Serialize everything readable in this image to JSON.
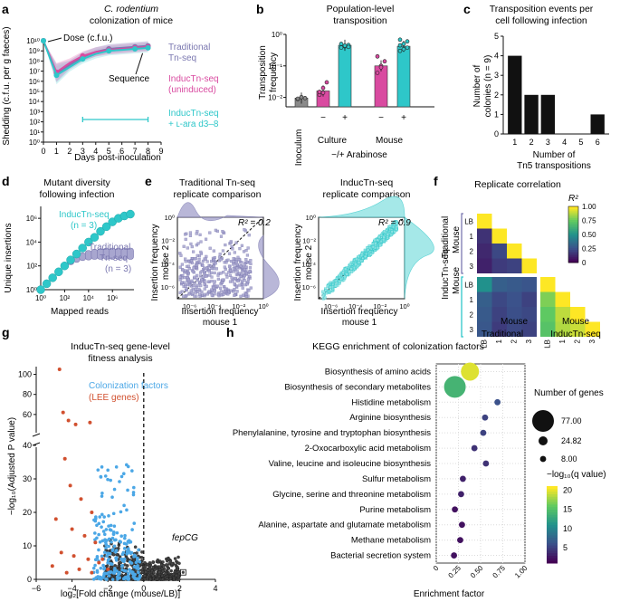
{
  "panel_letters": [
    "a",
    "b",
    "c",
    "d",
    "e",
    "f",
    "g",
    "h"
  ],
  "colors": {
    "traditional": "#7b78b0",
    "traditional_light": "#a8a6cf",
    "inductn": "#d94aa0",
    "inductn_light": "#ea9ccc",
    "cyan": "#2ec7c9",
    "lee": "#d1502f",
    "colonization": "#4ba7e6",
    "grey": "#8a8a8a",
    "black": "#111111"
  },
  "chart_data": [
    {
      "id": "a",
      "type": "line",
      "title": "C. rodentium",
      "subtitle": "colonization of mice",
      "xlabel": "Days post-inoculation",
      "ylabel": "Shedding (c.f.u. per g faeces)",
      "xlim": [
        0,
        9
      ],
      "ylim_log10": [
        0,
        10
      ],
      "xticks": [
        "0",
        "1",
        "2",
        "3",
        "4",
        "5",
        "6",
        "7",
        "8",
        "9"
      ],
      "yticks": [
        "10⁰",
        "10¹",
        "10²",
        "10³",
        "10⁴",
        "10⁵",
        "10⁶",
        "10⁷",
        "10⁸",
        "10⁹",
        "10¹⁰"
      ],
      "annotations": {
        "dose": "Dose (c.f.u.)",
        "sequence": "Sequence"
      },
      "legend": {
        "traditional": [
          "Traditional",
          "Tn-seq"
        ],
        "inductn_uninduced": [
          "InducTn-seq",
          "(uninduced)"
        ],
        "inductn_ara": [
          "InducTn-seq",
          "+ ʟ-ara d3–8"
        ]
      },
      "arabinose_window": [
        3,
        8
      ],
      "series": [
        {
          "name": "Traditional Tn-seq",
          "x": [
            0,
            1,
            2,
            3,
            4,
            5,
            6,
            7,
            8
          ],
          "log10_y": [
            10.0,
            6.8,
            7.6,
            8.4,
            8.9,
            9.2,
            9.3,
            9.4,
            9.5
          ]
        },
        {
          "name": "InducTn-seq (uninduced)",
          "x": [
            0,
            1,
            2,
            3,
            4,
            5,
            6,
            7,
            8
          ],
          "log10_y": [
            10.0,
            6.9,
            7.8,
            8.5,
            8.9,
            9.1,
            9.2,
            9.3,
            9.4
          ]
        },
        {
          "name": "InducTn-seq + L-ara d3-8",
          "x": [
            0,
            1,
            2,
            3,
            4,
            5,
            6,
            7,
            8
          ],
          "log10_y": [
            10.0,
            6.6,
            7.4,
            8.2,
            8.7,
            9.0,
            9.1,
            9.2,
            9.3
          ]
        }
      ]
    },
    {
      "id": "b",
      "type": "bar",
      "title": "Population-level",
      "subtitle": "transposition",
      "ylabel": [
        "Transposition",
        "frequency"
      ],
      "yticks": [
        "10⁻²",
        "10⁻¹",
        "10⁰"
      ],
      "categories": [
        "Inoculum",
        "Culture −",
        "Culture +",
        "Mouse −",
        "Mouse +"
      ],
      "signs": [
        "−",
        "+",
        "−",
        "+"
      ],
      "group_labels": [
        "Inoculum",
        "Culture",
        "Mouse"
      ],
      "xlabel": "−/+ Arabinose",
      "values": [
        0.0095,
        0.016,
        0.45,
        0.1,
        0.42
      ],
      "points": [
        [
          0.0088,
          0.0102,
          0.0095,
          0.0091
        ],
        [
          0.012,
          0.02,
          0.03,
          0.015,
          0.014
        ],
        [
          0.38,
          0.42,
          0.46,
          0.5,
          0.44,
          0.4
        ],
        [
          0.06,
          0.1,
          0.14,
          0.2,
          0.09
        ],
        [
          0.3,
          0.34,
          0.38,
          0.45,
          0.5,
          0.6,
          0.68
        ]
      ],
      "bar_colors": [
        "#8a8a8a",
        "#d94aa0",
        "#2ec7c9",
        "#d94aa0",
        "#2ec7c9"
      ]
    },
    {
      "id": "c",
      "type": "bar",
      "title": "Transposition events per",
      "subtitle": "cell following infection",
      "ylabel": [
        "Number of",
        "colonies (n = 9)"
      ],
      "xlabel": [
        "Number of",
        "Tn5 transpositions"
      ],
      "categories": [
        "1",
        "2",
        "3",
        "4",
        "5",
        "6"
      ],
      "values": [
        4,
        2,
        2,
        0,
        0,
        1
      ],
      "ylim": [
        0,
        5
      ],
      "yticks": [
        "0",
        "1",
        "2",
        "3",
        "4",
        "5"
      ]
    },
    {
      "id": "d",
      "type": "line",
      "title": "Mutant diversity",
      "subtitle": "following infection",
      "ylabel": "Unique insertions",
      "xlabel": "Mapped reads",
      "xticks": [
        "10⁰",
        "10²",
        "10⁴",
        "10⁶"
      ],
      "yticks": [
        "10⁰",
        "10²",
        "10⁴",
        "10⁶"
      ],
      "legend": {
        "inductn": [
          "InducTn-seq",
          "(n = 3)"
        ],
        "traditional": [
          "Traditional",
          "Tn-seq",
          "(n = 3)"
        ]
      },
      "series": [
        {
          "name": "InducTn-seq",
          "log10_x": [
            0,
            0.5,
            1,
            1.5,
            2,
            2.5,
            3,
            3.5,
            4,
            4.5,
            5,
            5.5,
            6,
            6.5,
            7,
            7.5
          ],
          "log10_y": [
            0,
            0.5,
            1,
            1.5,
            2,
            2.5,
            3,
            3.5,
            4,
            4.4,
            4.9,
            5.3,
            5.7,
            6.0,
            6.2,
            6.35
          ]
        },
        {
          "name": "Traditional Tn-seq",
          "log10_x": [
            0,
            0.5,
            1,
            1.5,
            2,
            2.5,
            3,
            3.5,
            4,
            4.5,
            5,
            5.5,
            6,
            6.5,
            7,
            7.5
          ],
          "log10_y": [
            0,
            0.5,
            1,
            1.45,
            1.9,
            2.3,
            2.6,
            2.8,
            2.9,
            2.95,
            3.0,
            3.0,
            3.0,
            3.0,
            3.0,
            3.0
          ],
          "band_low": [
            0,
            0.5,
            1,
            1.4,
            1.8,
            2.1,
            2.3,
            2.45,
            2.5,
            2.55,
            2.55,
            2.55,
            2.55,
            2.55,
            2.55,
            2.55
          ],
          "band_high": [
            0,
            0.5,
            1,
            1.5,
            2,
            2.45,
            2.85,
            3.1,
            3.3,
            3.4,
            3.45,
            3.5,
            3.5,
            3.5,
            3.5,
            3.5
          ]
        }
      ]
    },
    {
      "id": "e",
      "type": "scatter",
      "plots": [
        {
          "title": "Traditional Tn-seq",
          "subtitle": "replicate comparison",
          "r2": "R² = 0.2",
          "xlabel": "Insertion frequency",
          "xlabel2": "mouse 1",
          "ylabel": "Insertion frequency",
          "ylabel2": "mouse 2",
          "ticks": [
            "10⁻⁶",
            "10⁻⁴",
            "10⁻²",
            "10⁰"
          ]
        },
        {
          "title": "InducTn-seq",
          "subtitle": "replicate comparison",
          "r2": "R² = 0.9",
          "xlabel": "Insertion frequency",
          "xlabel2": "mouse 1",
          "ylabel": "Insertion frequency",
          "ylabel2": "mouse 2",
          "ticks": [
            "10⁻⁶",
            "10⁻⁴",
            "10⁻²",
            "10⁰"
          ]
        }
      ]
    },
    {
      "id": "f",
      "type": "heatmap",
      "title": "Replicate correlation",
      "row_labels": [
        "LB",
        "1",
        "2",
        "3",
        "LB",
        "1",
        "2",
        "3"
      ],
      "col_labels": [
        "LB",
        "1",
        "2",
        "3",
        "LB",
        "1",
        "2",
        "3"
      ],
      "left_group_labels": [
        "Traditional",
        "InducTn-seq"
      ],
      "mouse_label": "Mouse",
      "bottom_group_labels": [
        "Traditional",
        "InducTn-seq"
      ],
      "colorbar_label": "R²",
      "colorbar_ticks": [
        "0",
        "0.25",
        "0.50",
        "0.75",
        "1.00"
      ],
      "matrix": [
        [
          1.0,
          null,
          null,
          null,
          null,
          null,
          null,
          null
        ],
        [
          0.15,
          1.0,
          null,
          null,
          null,
          null,
          null,
          null
        ],
        [
          0.12,
          0.22,
          1.0,
          null,
          null,
          null,
          null,
          null
        ],
        [
          0.1,
          0.18,
          0.2,
          1.0,
          null,
          null,
          null,
          null
        ],
        [
          0.5,
          0.3,
          0.28,
          0.26,
          1.0,
          null,
          null,
          null
        ],
        [
          0.3,
          0.22,
          0.25,
          0.2,
          0.8,
          1.0,
          null,
          null
        ],
        [
          0.28,
          0.2,
          0.24,
          0.22,
          0.75,
          0.9,
          1.0,
          null
        ],
        [
          0.27,
          0.18,
          0.22,
          0.2,
          0.72,
          0.88,
          0.92,
          1.0
        ]
      ]
    },
    {
      "id": "g",
      "type": "scatter",
      "title": "InducTn-seq gene-level",
      "subtitle": "fitness analysis",
      "xlabel": "log₂[Fold change (mouse/LB)]",
      "ylabel": "−log₁₀(Adjusted P value)",
      "xticks": [
        "−6",
        "−4",
        "−2",
        "0",
        "2",
        "4"
      ],
      "yticks": [
        "0",
        "10",
        "20",
        "30",
        "40",
        "60",
        "80",
        "100"
      ],
      "legend": [
        "Colonization factors",
        "(LEE genes)"
      ],
      "annotation": "fepCG",
      "lee_points": [
        [
          -4.7,
          105
        ],
        [
          -4.5,
          62
        ],
        [
          -4.2,
          54
        ],
        [
          -3.8,
          50
        ],
        [
          -3.0,
          52
        ],
        [
          -4.4,
          36
        ],
        [
          -4.1,
          28
        ],
        [
          -3.5,
          24
        ],
        [
          -2.9,
          20
        ],
        [
          -4.9,
          18
        ],
        [
          -4.0,
          15
        ],
        [
          -3.3,
          13
        ],
        [
          -2.7,
          11
        ],
        [
          -4.6,
          8
        ],
        [
          -3.9,
          7
        ],
        [
          -3.1,
          6
        ],
        [
          -2.5,
          5
        ],
        [
          -5.1,
          4
        ],
        [
          -3.6,
          3
        ],
        [
          -2.9,
          2
        ],
        [
          -2.3,
          6
        ],
        [
          -4.3,
          2
        ],
        [
          -2.0,
          3
        ]
      ],
      "fepCG": [
        2.2,
        2.1
      ]
    },
    {
      "id": "h",
      "type": "scatter",
      "title": "KEGG enrichment of colonization factors",
      "xlabel": "Enrichment factor",
      "xticks": [
        "0",
        "0.25",
        "0.50",
        "0.75",
        "1.00"
      ],
      "xlim": [
        0,
        1
      ],
      "size_legend_title": "Number of genes",
      "size_legend": [
        "77.00",
        "24.82",
        "8.00"
      ],
      "color_legend_title": "−log₁₀(q value)",
      "color_legend_ticks": [
        "5",
        "10",
        "15",
        "20"
      ],
      "terms": [
        {
          "name": "Biosynthesis of amino acids",
          "x": 0.38,
          "genes": 60,
          "q": 20
        },
        {
          "name": "Biosynthesis of secondary metabolites",
          "x": 0.21,
          "genes": 77,
          "q": 14
        },
        {
          "name": "Histidine metabolism",
          "x": 0.69,
          "genes": 8,
          "q": 6
        },
        {
          "name": "Arginine biosynthesis",
          "x": 0.55,
          "genes": 9,
          "q": 5
        },
        {
          "name": "Phenylalanine, tyrosine and tryptophan biosynthesis",
          "x": 0.53,
          "genes": 10,
          "q": 5
        },
        {
          "name": "2-Oxocarboxylic acid metabolism",
          "x": 0.43,
          "genes": 9,
          "q": 4
        },
        {
          "name": "Valine, leucine and isoleucine biosynthesis",
          "x": 0.56,
          "genes": 8,
          "q": 4
        },
        {
          "name": "Sulfur metabolism",
          "x": 0.3,
          "genes": 8,
          "q": 3
        },
        {
          "name": "Glycine, serine and threonine metabolism",
          "x": 0.28,
          "genes": 9,
          "q": 3
        },
        {
          "name": "Purine metabolism",
          "x": 0.21,
          "genes": 11,
          "q": 2
        },
        {
          "name": "Alanine, aspartate and glutamate metabolism",
          "x": 0.29,
          "genes": 8,
          "q": 2
        },
        {
          "name": "Methane metabolism",
          "x": 0.27,
          "genes": 8,
          "q": 2
        },
        {
          "name": "Bacterial secretion system",
          "x": 0.2,
          "genes": 9,
          "q": 2
        }
      ]
    }
  ]
}
